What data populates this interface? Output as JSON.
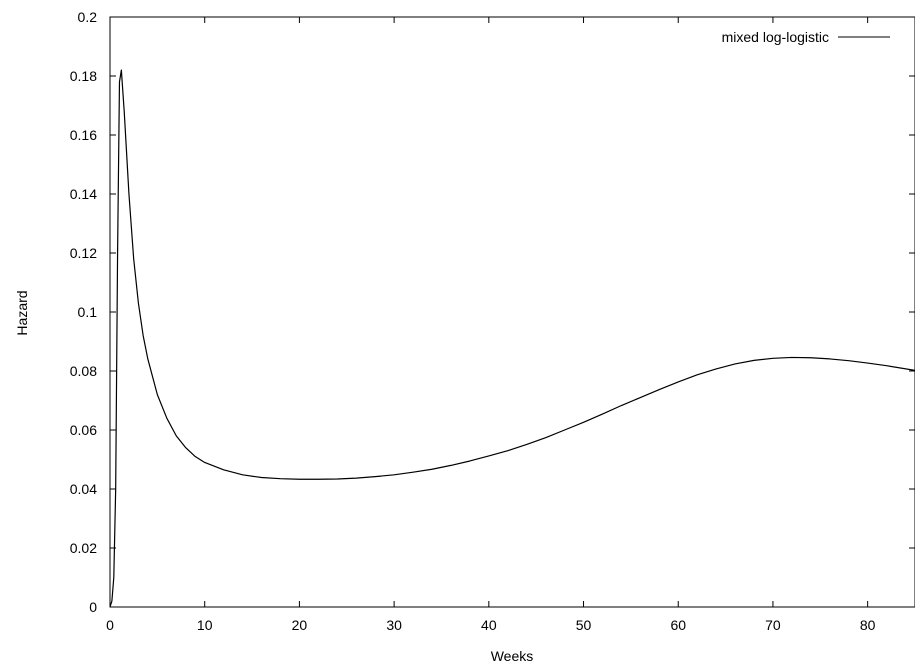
{
  "chart_data": {
    "type": "line",
    "title": "",
    "xlabel": "Weeks",
    "ylabel": "Hazard",
    "xlim": [
      0,
      85
    ],
    "ylim": [
      0,
      0.2
    ],
    "xticks": [
      0,
      10,
      20,
      30,
      40,
      50,
      60,
      70,
      80
    ],
    "yticks": [
      0,
      0.02,
      0.04,
      0.06,
      0.08,
      0.1,
      0.12,
      0.14,
      0.16,
      0.18,
      0.2
    ],
    "ytick_labels": [
      "0",
      "0.02",
      "0.04",
      "0.06",
      "0.08",
      "0.1",
      "0.12",
      "0.14",
      "0.16",
      "0.18",
      "0.2"
    ],
    "legend_position": "top-right",
    "grid": false,
    "series": [
      {
        "name": "mixed log-logistic",
        "color": "#000000",
        "x": [
          0,
          0.2,
          0.4,
          0.6,
          0.8,
          1.0,
          1.2,
          1.5,
          2,
          2.5,
          3,
          3.5,
          4,
          5,
          6,
          7,
          8,
          9,
          10,
          12,
          14,
          16,
          18,
          20,
          22,
          24,
          26,
          28,
          30,
          32,
          34,
          36,
          38,
          40,
          42,
          44,
          46,
          48,
          50,
          52,
          54,
          56,
          58,
          60,
          62,
          64,
          66,
          68,
          70,
          72,
          74,
          76,
          78,
          80,
          82,
          85
        ],
        "y": [
          0,
          0.002,
          0.01,
          0.04,
          0.12,
          0.178,
          0.182,
          0.168,
          0.14,
          0.118,
          0.103,
          0.092,
          0.084,
          0.072,
          0.064,
          0.058,
          0.054,
          0.051,
          0.049,
          0.0465,
          0.0448,
          0.0439,
          0.0435,
          0.0433,
          0.0433,
          0.0434,
          0.0437,
          0.0442,
          0.0448,
          0.0457,
          0.0467,
          0.048,
          0.0495,
          0.0512,
          0.053,
          0.0551,
          0.0574,
          0.06,
          0.0626,
          0.0654,
          0.0683,
          0.071,
          0.0737,
          0.0763,
          0.0787,
          0.0807,
          0.0824,
          0.0836,
          0.0843,
          0.0846,
          0.0845,
          0.0841,
          0.0835,
          0.0827,
          0.0818,
          0.0802
        ]
      }
    ]
  }
}
